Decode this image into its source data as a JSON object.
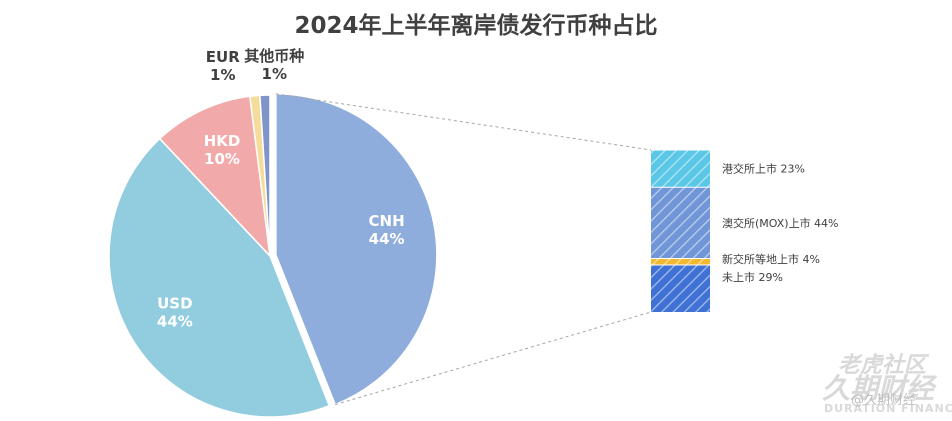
{
  "chart_data": {
    "type": "bar-of-pie",
    "title": "2024年上半年离岸债发行币种占比",
    "pie": {
      "slices": [
        {
          "label": "CNH",
          "percent_label": "44%",
          "value": 44,
          "color": "#8eaddd"
        },
        {
          "label": "USD",
          "percent_label": "44%",
          "value": 44,
          "color": "#92cddf"
        },
        {
          "label": "HKD",
          "percent_label": "10%",
          "value": 10,
          "color": "#f2a9a9"
        },
        {
          "label": "EUR",
          "percent_label": "1%",
          "value": 1,
          "color": "#f6dc9a"
        },
        {
          "label": "其他币种",
          "percent_label": "1%",
          "value": 1,
          "color": "#7f95c9"
        }
      ],
      "exploded_slice": "CNH"
    },
    "breakdown_of": "CNH",
    "breakdown": [
      {
        "label": "港交所上市 23%",
        "value": 23,
        "color": "#5bc7e6"
      },
      {
        "label": "澳交所(MOX)上市 44%",
        "value": 44,
        "color": "#7096d8"
      },
      {
        "label": "新交所等地上市 4%",
        "value": 4,
        "color": "#f2b92f"
      },
      {
        "label": "未上市 29%",
        "value": 29,
        "color": "#3f72d4"
      }
    ]
  },
  "watermark": {
    "line1": "老虎社区",
    "line2": "久期财经",
    "line3": "DURATION FINANCE",
    "handle": "@久期财经"
  }
}
